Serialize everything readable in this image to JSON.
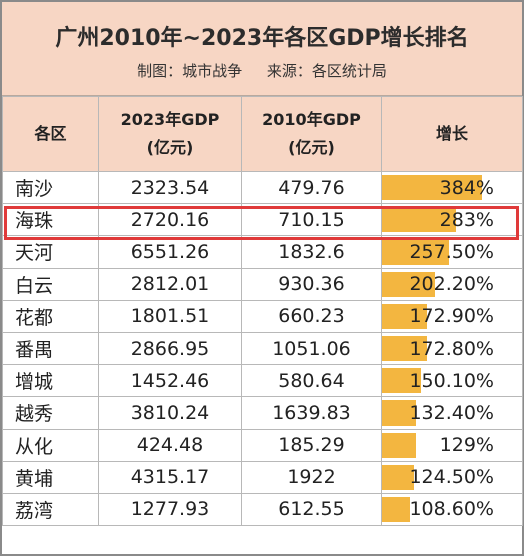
{
  "header": {
    "title": "广州2010年~2023年各区GDP增长排名",
    "made_by": "制图：城市战争",
    "source": "来源：各区统计局"
  },
  "table": {
    "columns": [
      "各区",
      "2023年GDP",
      "(亿元)",
      "2010年GDP",
      "(亿元)",
      "增长"
    ],
    "rows": [
      {
        "district": "南沙",
        "gdp2023": "2323.54",
        "gdp2010": "479.76",
        "growth": "384%",
        "growth_value": 384
      },
      {
        "district": "海珠",
        "gdp2023": "2720.16",
        "gdp2010": "710.15",
        "growth": "283%",
        "growth_value": 283
      },
      {
        "district": "天河",
        "gdp2023": "6551.26",
        "gdp2010": "1832.6",
        "growth": "257.50%",
        "growth_value": 257.5
      },
      {
        "district": "白云",
        "gdp2023": "2812.01",
        "gdp2010": "930.36",
        "growth": "202.20%",
        "growth_value": 202.2
      },
      {
        "district": "花都",
        "gdp2023": "1801.51",
        "gdp2010": "660.23",
        "growth": "172.90%",
        "growth_value": 172.9
      },
      {
        "district": "番禺",
        "gdp2023": "2866.95",
        "gdp2010": "1051.06",
        "growth": "172.80%",
        "growth_value": 172.8
      },
      {
        "district": "增城",
        "gdp2023": "1452.46",
        "gdp2010": "580.64",
        "growth": "150.10%",
        "growth_value": 150.1
      },
      {
        "district": "越秀",
        "gdp2023": "3810.24",
        "gdp2010": "1639.83",
        "growth": "132.40%",
        "growth_value": 132.4
      },
      {
        "district": "从化",
        "gdp2023": "424.48",
        "gdp2010": "185.29",
        "growth": "129%",
        "growth_value": 129
      },
      {
        "district": "黄埔",
        "gdp2023": "4315.17",
        "gdp2010": "1922",
        "growth": "124.50%",
        "growth_value": 124.5
      },
      {
        "district": "荔湾",
        "gdp2023": "1277.93",
        "gdp2010": "612.55",
        "growth": "108.60%",
        "growth_value": 108.6
      }
    ],
    "highlighted_district": "海珠",
    "bar_color": "#f3b640",
    "highlight_color": "#e03a3a",
    "header_bg": "#f7d6c4"
  }
}
